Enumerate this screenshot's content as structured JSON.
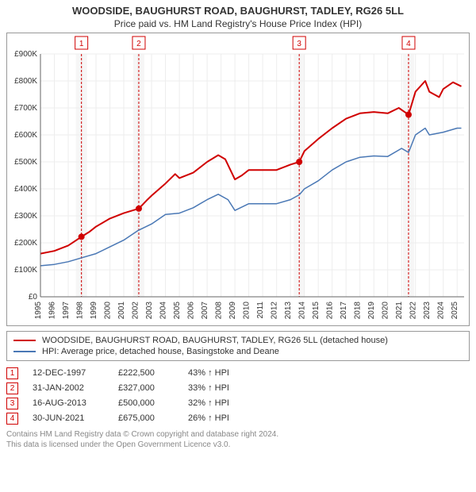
{
  "title": "WOODSIDE, BAUGHURST ROAD, BAUGHURST, TADLEY, RG26 5LL",
  "subtitle": "Price paid vs. HM Land Registry's House Price Index (HPI)",
  "chart": {
    "type": "line",
    "background_color": "#ffffff",
    "grid_color": "#ededed",
    "axis_color": "#666666",
    "tick_font_size": 10,
    "x": {
      "min": 1995,
      "max": 2025.5,
      "ticks": [
        1995,
        1996,
        1997,
        1998,
        1999,
        2000,
        2001,
        2002,
        2003,
        2004,
        2005,
        2006,
        2007,
        2008,
        2009,
        2010,
        2011,
        2012,
        2013,
        2014,
        2015,
        2016,
        2017,
        2018,
        2019,
        2020,
        2021,
        2022,
        2023,
        2024,
        2025
      ]
    },
    "y": {
      "min": 0,
      "max": 900000,
      "tick_step": 100000,
      "tick_labels": [
        "£0",
        "£100K",
        "£200K",
        "£300K",
        "£400K",
        "£500K",
        "£600K",
        "£700K",
        "£800K",
        "£900K"
      ]
    },
    "series": [
      {
        "name": "WOODSIDE, BAUGHURST ROAD, BAUGHURST, TADLEY, RG26 5LL (detached house)",
        "color": "#d00000",
        "line_width": 2,
        "data": [
          [
            1995,
            160000
          ],
          [
            1996,
            170000
          ],
          [
            1997,
            190000
          ],
          [
            1997.95,
            222500
          ],
          [
            1998.5,
            240000
          ],
          [
            1999,
            260000
          ],
          [
            2000,
            290000
          ],
          [
            2001,
            310000
          ],
          [
            2002.08,
            327000
          ],
          [
            2002.7,
            360000
          ],
          [
            2003,
            375000
          ],
          [
            2004,
            420000
          ],
          [
            2004.7,
            455000
          ],
          [
            2005,
            440000
          ],
          [
            2006,
            460000
          ],
          [
            2007,
            500000
          ],
          [
            2007.8,
            525000
          ],
          [
            2008.3,
            510000
          ],
          [
            2009,
            435000
          ],
          [
            2009.5,
            450000
          ],
          [
            2010,
            470000
          ],
          [
            2011,
            470000
          ],
          [
            2012,
            470000
          ],
          [
            2013,
            490000
          ],
          [
            2013.63,
            500000
          ],
          [
            2014,
            540000
          ],
          [
            2015,
            585000
          ],
          [
            2016,
            625000
          ],
          [
            2017,
            660000
          ],
          [
            2018,
            680000
          ],
          [
            2019,
            685000
          ],
          [
            2020,
            680000
          ],
          [
            2020.8,
            700000
          ],
          [
            2021.5,
            675000
          ],
          [
            2022,
            760000
          ],
          [
            2022.7,
            800000
          ],
          [
            2023,
            760000
          ],
          [
            2023.7,
            740000
          ],
          [
            2024,
            770000
          ],
          [
            2024.7,
            795000
          ],
          [
            2025.3,
            780000
          ]
        ]
      },
      {
        "name": "HPI: Average price, detached house, Basingstoke and Deane",
        "color": "#4a78b5",
        "line_width": 1.5,
        "data": [
          [
            1995,
            115000
          ],
          [
            1996,
            120000
          ],
          [
            1997,
            130000
          ],
          [
            1998,
            145000
          ],
          [
            1999,
            160000
          ],
          [
            2000,
            185000
          ],
          [
            2001,
            210000
          ],
          [
            2002,
            245000
          ],
          [
            2003,
            270000
          ],
          [
            2004,
            305000
          ],
          [
            2005,
            310000
          ],
          [
            2006,
            330000
          ],
          [
            2007,
            360000
          ],
          [
            2007.8,
            380000
          ],
          [
            2008.5,
            360000
          ],
          [
            2009,
            320000
          ],
          [
            2010,
            345000
          ],
          [
            2011,
            345000
          ],
          [
            2012,
            345000
          ],
          [
            2013,
            360000
          ],
          [
            2013.63,
            378000
          ],
          [
            2014,
            400000
          ],
          [
            2015,
            430000
          ],
          [
            2016,
            470000
          ],
          [
            2017,
            500000
          ],
          [
            2018,
            517000
          ],
          [
            2019,
            522000
          ],
          [
            2020,
            520000
          ],
          [
            2021,
            550000
          ],
          [
            2021.5,
            535000
          ],
          [
            2022,
            600000
          ],
          [
            2022.7,
            625000
          ],
          [
            2023,
            600000
          ],
          [
            2024,
            610000
          ],
          [
            2025,
            625000
          ],
          [
            2025.3,
            625000
          ]
        ]
      }
    ],
    "event_bands": [
      {
        "num": "1",
        "x": 1997.95,
        "band_color": "#f6f6f6",
        "line_color": "#d00000"
      },
      {
        "num": "2",
        "x": 2002.08,
        "band_color": "#f6f6f6",
        "line_color": "#d00000"
      },
      {
        "num": "3",
        "x": 2013.63,
        "band_color": "#f6f6f6",
        "line_color": "#d00000"
      },
      {
        "num": "4",
        "x": 2021.5,
        "band_color": "#f6f6f6",
        "line_color": "#d00000"
      }
    ],
    "event_points": [
      {
        "x": 1997.95,
        "y": 222500,
        "color": "#d00000"
      },
      {
        "x": 2002.08,
        "y": 327000,
        "color": "#d00000"
      },
      {
        "x": 2013.63,
        "y": 500000,
        "color": "#d00000"
      },
      {
        "x": 2021.5,
        "y": 675000,
        "color": "#d00000"
      }
    ]
  },
  "legend": {
    "items": [
      {
        "color": "#d00000",
        "label": "WOODSIDE, BAUGHURST ROAD, BAUGHURST, TADLEY, RG26 5LL (detached house)"
      },
      {
        "color": "#4a78b5",
        "label": "HPI: Average price, detached house, Basingstoke and Deane"
      }
    ]
  },
  "events_table": [
    {
      "num": "1",
      "date": "12-DEC-1997",
      "price": "£222,500",
      "diff": "43% ↑ HPI"
    },
    {
      "num": "2",
      "date": "31-JAN-2002",
      "price": "£327,000",
      "diff": "33% ↑ HPI"
    },
    {
      "num": "3",
      "date": "16-AUG-2013",
      "price": "£500,000",
      "diff": "32% ↑ HPI"
    },
    {
      "num": "4",
      "date": "30-JUN-2021",
      "price": "£675,000",
      "diff": "26% ↑ HPI"
    }
  ],
  "footer": {
    "line1": "Contains HM Land Registry data © Crown copyright and database right 2024.",
    "line2": "This data is licensed under the Open Government Licence v3.0."
  },
  "marker_border_color": "#d00000"
}
